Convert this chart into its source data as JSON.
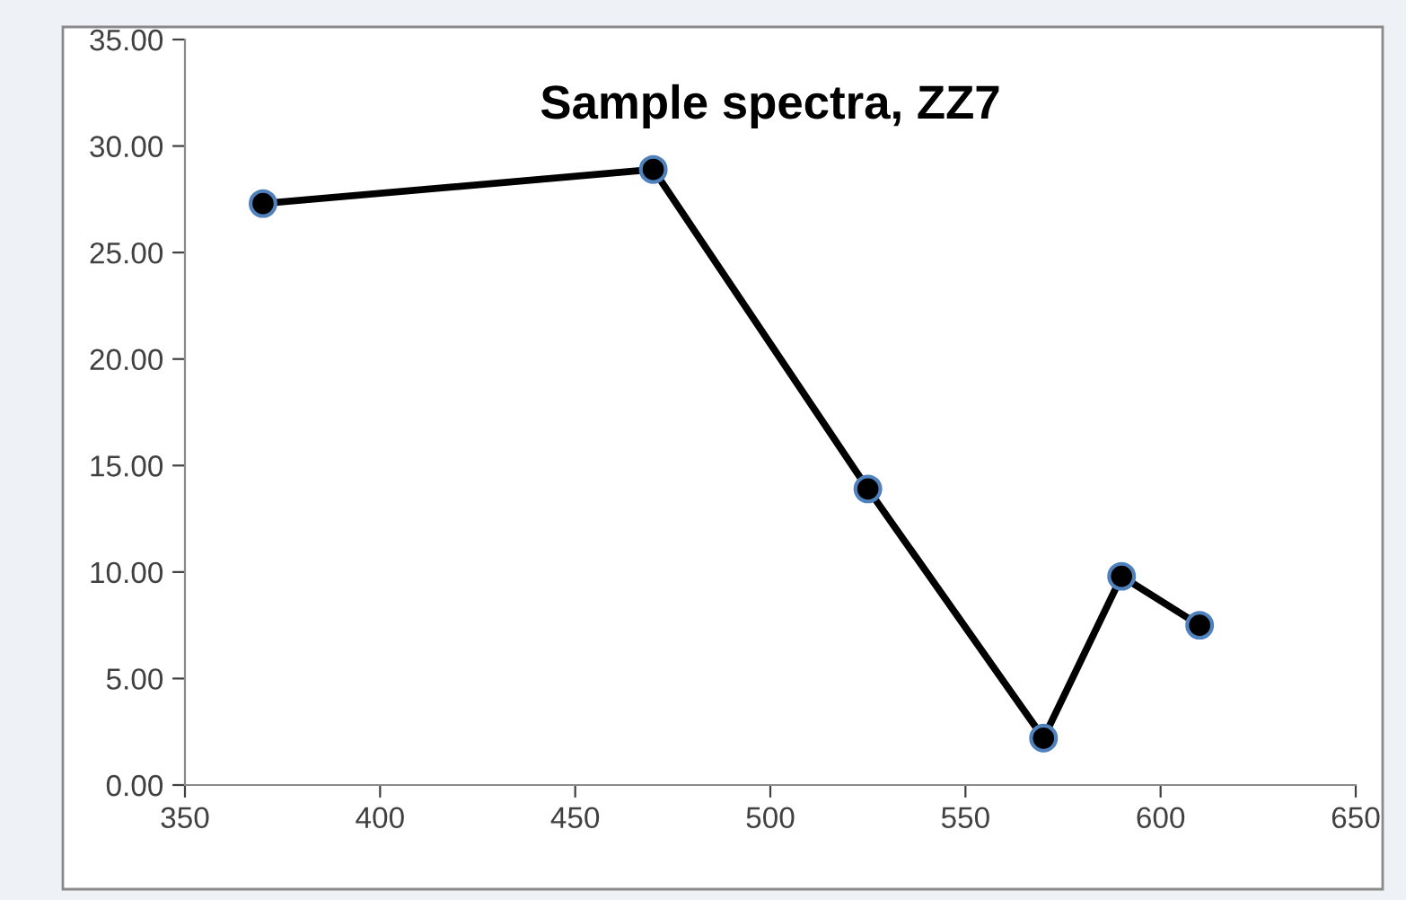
{
  "chart_data": {
    "type": "line",
    "title": "Sample spectra, ZZ7",
    "x": [
      370,
      470,
      525,
      570,
      590,
      610
    ],
    "series": [
      {
        "color": "#000000",
        "values": [
          27.3,
          28.9,
          13.9,
          2.2,
          9.8,
          7.5
        ]
      }
    ],
    "xlim": [
      350,
      650
    ],
    "xticks": [
      350,
      400,
      450,
      500,
      550,
      600,
      650
    ],
    "ylim": [
      0,
      35
    ],
    "yticks": [
      {
        "value": 0,
        "label": "0.00"
      },
      {
        "value": 5,
        "label": "5.00"
      },
      {
        "value": 10,
        "label": "10.00"
      },
      {
        "value": 15,
        "label": "15.00"
      },
      {
        "value": 20,
        "label": "20.00"
      },
      {
        "value": 25,
        "label": "25.00"
      },
      {
        "value": 30,
        "label": "30.00"
      },
      {
        "value": 35,
        "label": "35.00"
      }
    ],
    "grid": false,
    "marker": "circle",
    "line_style": "solid"
  }
}
